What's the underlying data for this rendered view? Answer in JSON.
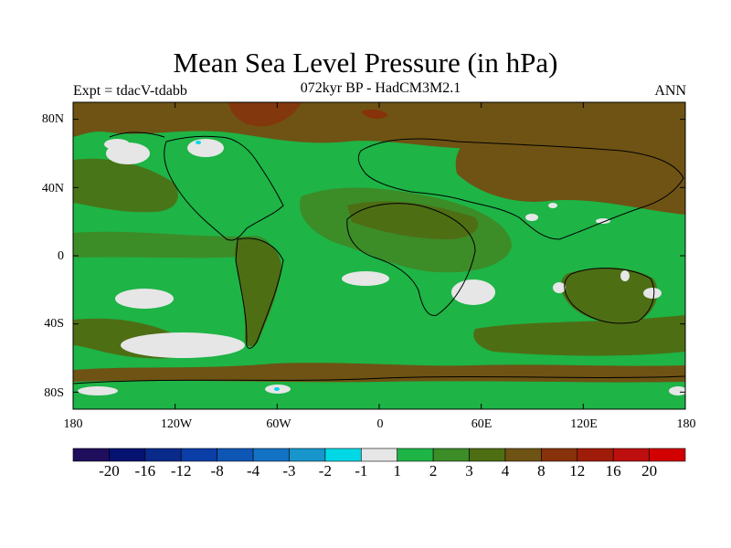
{
  "title": "Mean Sea Level Pressure (in hPa)",
  "experiment": "Expt = tdacV-tdabb",
  "subtitle": "072kyr BP - HadCM3M2.1",
  "season": "ANN",
  "lat_labels": [
    "80N",
    "40N",
    "0",
    "40S",
    "80S"
  ],
  "lon_labels": [
    "180",
    "120W",
    "60W",
    "0",
    "60E",
    "120E",
    "180"
  ],
  "colorbar": {
    "labels": [
      "-20",
      "-16",
      "-12",
      "-8",
      "-4",
      "-3",
      "-2",
      "-1",
      "1",
      "2",
      "3",
      "4",
      "8",
      "12",
      "16",
      "20"
    ],
    "colors": [
      "#1e0e5c",
      "#061270",
      "#0a2a8a",
      "#0b3ea6",
      "#0e56b4",
      "#1272c4",
      "#1896cc",
      "#00d8e6",
      "#e6e6e6",
      "#1eb446",
      "#3c8c28",
      "#4e6e14",
      "#6e5314",
      "#87320a",
      "#a01c0a",
      "#be0f0f",
      "#d20000"
    ]
  },
  "map_colors": {
    "green_light": "#1eb446",
    "green_mid": "#3c8c28",
    "olive": "#6e5314",
    "olive_dark": "#4e6e14",
    "brown": "#87320a",
    "white": "#e6e6e6",
    "cyan": "#00d8e6",
    "coast": "#000000"
  }
}
